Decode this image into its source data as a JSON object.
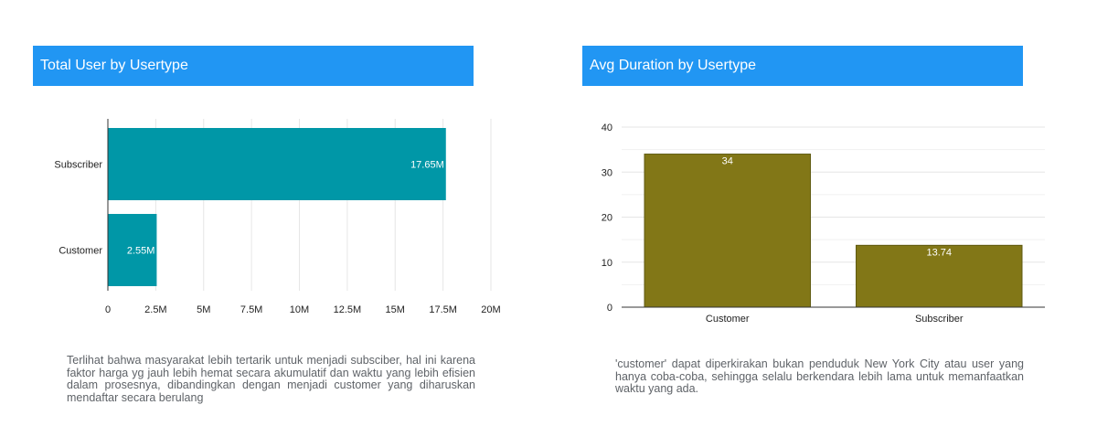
{
  "colors": {
    "header_bg": "#2196F3",
    "bar_left": "#0097A7",
    "bar_right": "#827717",
    "grid": "#e6e6e6",
    "axis": "#333333"
  },
  "panels": {
    "left": {
      "title": "Total User by Usertype",
      "description": "Terlihat bahwa masyarakat lebih tertarik untuk menjadi subsciber, hal ini karena faktor harga yg jauh lebih hemat secara akumulatif dan waktu yang lebih efisien dalam prosesnya, dibandingkan dengan menjadi customer yang diharuskan mendaftar secara berulang"
    },
    "right": {
      "title": "Avg Duration by Usertype",
      "description": "'customer' dapat diperkirakan bukan penduduk New York City atau user yang hanya coba-coba, sehingga selalu berkendara lebih lama untuk memanfaatkan waktu yang ada."
    }
  },
  "chart_data": [
    {
      "type": "bar",
      "orientation": "horizontal",
      "categories": [
        "Subscriber",
        "Customer"
      ],
      "values": [
        17650000,
        2550000
      ],
      "data_labels": [
        "17.65M",
        "2.55M"
      ],
      "xlim": [
        0,
        20000000
      ],
      "xticks": [
        0,
        2500000,
        5000000,
        7500000,
        10000000,
        12500000,
        15000000,
        17500000,
        20000000
      ],
      "xtick_labels": [
        "0",
        "2.5M",
        "5M",
        "7.5M",
        "10M",
        "12.5M",
        "15M",
        "17.5M",
        "20M"
      ],
      "grid": true
    },
    {
      "type": "bar",
      "orientation": "vertical",
      "categories": [
        "Customer",
        "Subscriber"
      ],
      "values": [
        34,
        13.74
      ],
      "data_labels": [
        "34",
        "13.74"
      ],
      "ylim": [
        0,
        40
      ],
      "yticks": [
        0,
        10,
        20,
        30,
        40
      ],
      "ytick_labels": [
        "0",
        "10",
        "20",
        "30",
        "40"
      ],
      "grid": true
    }
  ]
}
